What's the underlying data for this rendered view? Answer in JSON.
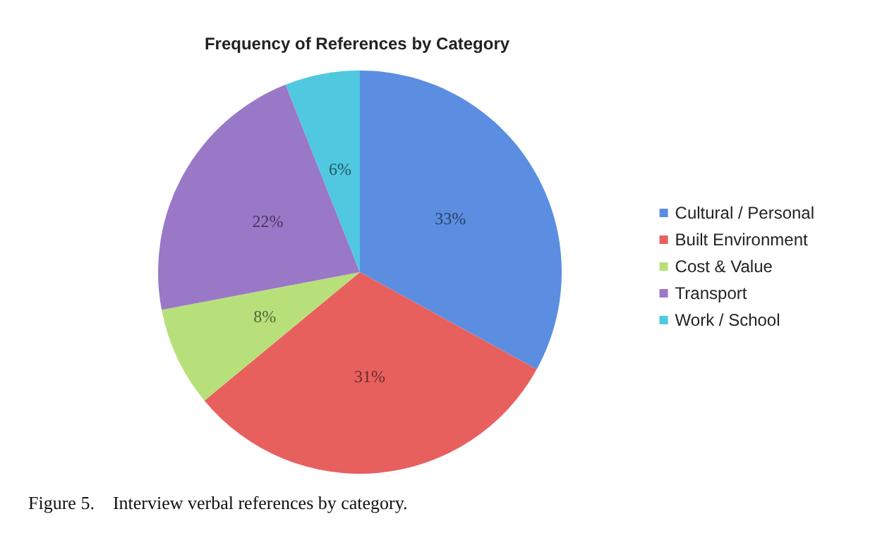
{
  "chart_data": {
    "type": "pie",
    "title": "Frequency of References by Category",
    "categories": [
      "Cultural / Personal",
      "Built Environment",
      "Cost & Value",
      "Transport",
      "Work / School"
    ],
    "values": [
      33,
      31,
      8,
      22,
      6
    ],
    "colors": [
      "#5b8ee0",
      "#e8605e",
      "#b8e07a",
      "#9a78c8",
      "#4fc8e0"
    ],
    "value_labels": [
      "33%",
      "31%",
      "8%",
      "22%",
      "6%"
    ],
    "legend": "right",
    "annotations": [
      "Figure 5.    Interview verbal references by category."
    ]
  }
}
